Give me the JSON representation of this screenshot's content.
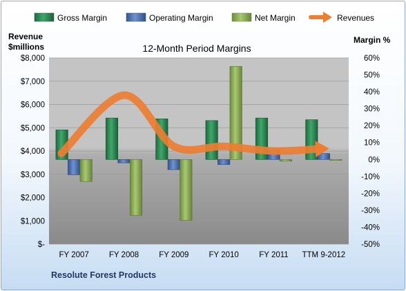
{
  "chart_data": {
    "type": "bar",
    "title": "12-Month Period Margins",
    "categories": [
      "FY 2007",
      "FY 2008",
      "FY 2009",
      "FY 2010",
      "FY 2011",
      "TTM 9-2012"
    ],
    "series": [
      {
        "name": "Gross Margin",
        "axis": "right",
        "kind": "bar",
        "color": "#2e8b57",
        "values": [
          17.5,
          24.5,
          24,
          23,
          24.5,
          23.5
        ]
      },
      {
        "name": "Operating Margin",
        "axis": "right",
        "kind": "bar",
        "color": "#4f73b5",
        "values": [
          -9,
          -2,
          -6,
          -3,
          5.5,
          3.5
        ]
      },
      {
        "name": "Net Margin",
        "axis": "right",
        "kind": "bar",
        "color": "#8fb257",
        "values": [
          -13,
          -33,
          -36,
          55,
          -1,
          -0.5
        ]
      },
      {
        "name": "Revenues",
        "axis": "left",
        "kind": "line",
        "color": "#ed7d31",
        "values": [
          3900,
          6400,
          4200,
          4200,
          4000,
          4100
        ]
      }
    ],
    "left_axis": {
      "label_line1": "Revenue",
      "label_line2": "$millions",
      "min": 0,
      "max": 8000,
      "step": 1000,
      "tick_labels": [
        "$-",
        "$1,000",
        "$2,000",
        "$3,000",
        "$4,000",
        "$5,000",
        "$6,000",
        "$7,000",
        "$8,000"
      ]
    },
    "right_axis": {
      "label": "Margin %",
      "min": -50,
      "max": 60,
      "step": 10,
      "tick_labels": [
        "-50%",
        "-40%",
        "-30%",
        "-20%",
        "-10%",
        "0%",
        "10%",
        "20%",
        "30%",
        "40%",
        "50%",
        "60%"
      ]
    },
    "legend_position": "top",
    "grid": true
  },
  "footer": {
    "company": "Resolute Forest Products"
  }
}
